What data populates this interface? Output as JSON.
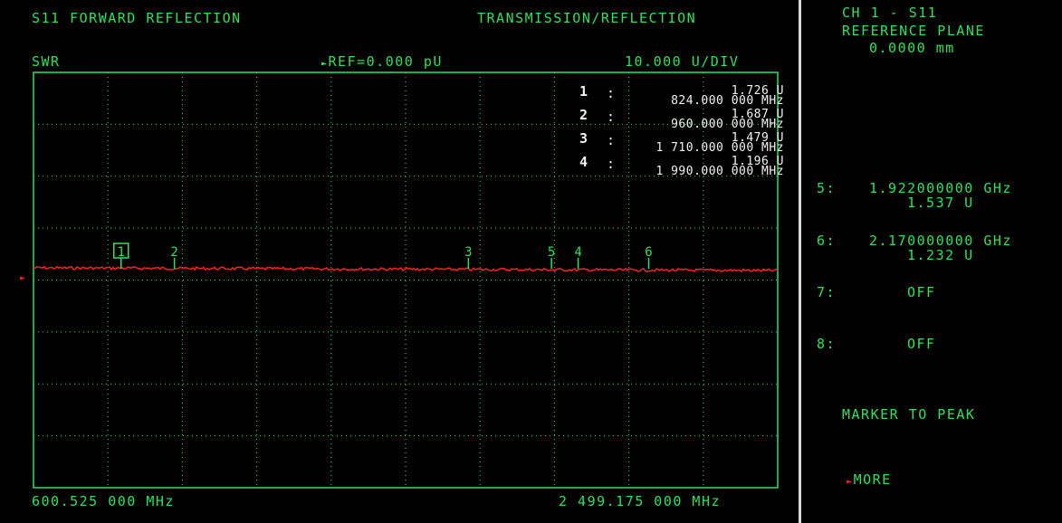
{
  "header": {
    "measurement": "S11 FORWARD REFLECTION",
    "mode": "TRANSMISSION/REFLECTION",
    "format": "SWR",
    "ref_marker": "►",
    "reference": "REF=0.000 pU",
    "scale": "10.000 U/DIV"
  },
  "frequency": {
    "start": "600.525 000 MHz",
    "stop": "2 499.175 000 MHz"
  },
  "marker_readouts": [
    {
      "num": "1",
      "sep": ":",
      "value": "1.726 U",
      "freq": "824.000 000 MHz"
    },
    {
      "num": "2",
      "sep": ":",
      "value": "1.687 U",
      "freq": "960.000 000 MHz"
    },
    {
      "num": "3",
      "sep": ":",
      "value": "1.479 U",
      "freq": "1 710.000 000 MHz"
    },
    {
      "num": "4",
      "sep": ":",
      "value": "1.196 U",
      "freq": "1 990.000 000 MHz"
    }
  ],
  "trace_markers": [
    {
      "label": "1",
      "freq_mhz": 824,
      "active": true
    },
    {
      "label": "2",
      "freq_mhz": 960,
      "active": false
    },
    {
      "label": "3",
      "freq_mhz": 1710,
      "active": false
    },
    {
      "label": "5",
      "freq_mhz": 1922,
      "active": false
    },
    {
      "label": "4",
      "freq_mhz": 1990,
      "active": false
    },
    {
      "label": "6",
      "freq_mhz": 2170,
      "active": false
    }
  ],
  "axis": {
    "start_mhz": 600.525,
    "stop_mhz": 2499.175
  },
  "ref_position_arrow": "►",
  "side_panel": {
    "channel": "CH 1 - S11",
    "ref_plane_label": "REFERENCE PLANE",
    "ref_plane_value": "0.0000 mm",
    "marker5_label": "5:",
    "marker5_freq": "1.922000000 GHz",
    "marker5_value": "1.537 U",
    "marker6_label": "6:",
    "marker6_freq": "2.170000000 GHz",
    "marker6_value": "1.232 U",
    "marker7_label": "7:",
    "marker7_state": "OFF",
    "marker8_label": "8:",
    "marker8_state": "OFF",
    "marker_to_peak": "MARKER TO PEAK",
    "more_arrow": "►",
    "more": "MORE"
  },
  "colors": {
    "text": "#2fe05a",
    "trace": "#ff2020",
    "grid": "#2fe05a",
    "marker_readout": "#f2f2f2",
    "separator": "#d8d8d8"
  }
}
